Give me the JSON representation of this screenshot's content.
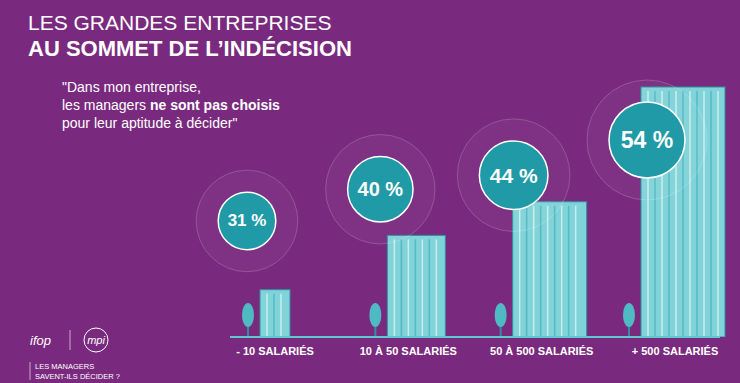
{
  "chart_data": {
    "type": "bar",
    "title": "LES GRANDES ENTREPRISES",
    "subtitle": "AU SOMMET DE L’INDÉCISION",
    "annotations": [
      [
        "\"Dans mon entreprise,"
      ],
      [
        "les managers ",
        "ne sont pas choisis"
      ],
      [
        "pour leur aptitude à décider\""
      ]
    ],
    "categories": [
      "- 10 SALARIÉS",
      "10 À 50 SALARIÉS",
      "50 À 500 SALARIÉS",
      "+ 500 SALARIÉS"
    ],
    "values": [
      31,
      40,
      44,
      54
    ],
    "value_labels": [
      "31 %",
      "40 %",
      "44 %",
      "54 %"
    ],
    "data_labels": true,
    "tick_labels": "x",
    "color": "#1f9aa6",
    "source": [
      "ifop",
      "mpi"
    ],
    "footer": [
      "LES MANAGERS",
      "SAVENT-ILS DÉCIDER ?"
    ]
  }
}
